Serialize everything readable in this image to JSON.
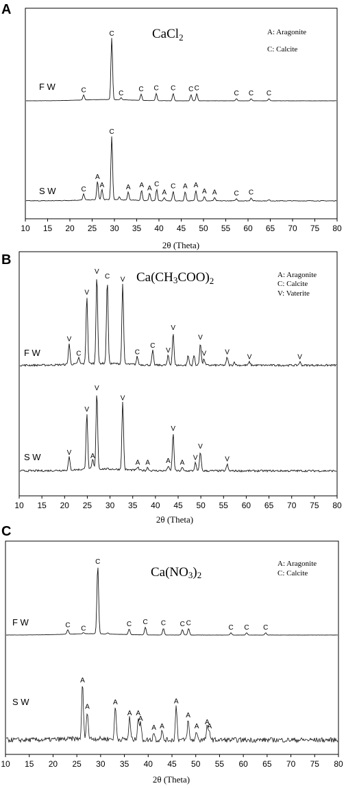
{
  "chart_data": [
    {
      "panel": "A",
      "type": "line",
      "title": "CaCl2",
      "xlabel": "2θ  (Theta)",
      "xlim": [
        10,
        80
      ],
      "xticks": [
        10,
        15,
        20,
        25,
        30,
        35,
        40,
        45,
        50,
        55,
        60,
        65,
        70,
        75,
        80
      ],
      "legend": [
        "A: Aragonite",
        "C: Calcite"
      ],
      "legend_position": "top-right",
      "series": [
        {
          "name": "F W",
          "noise": 0.1,
          "peaks": [
            {
              "x": 23.1,
              "h": 5,
              "label": "C"
            },
            {
              "x": 29.4,
              "h": 60,
              "label": "C"
            },
            {
              "x": 31.5,
              "h": 2,
              "label": "C"
            },
            {
              "x": 36.0,
              "h": 6,
              "label": "C"
            },
            {
              "x": 39.4,
              "h": 7,
              "label": "C"
            },
            {
              "x": 43.2,
              "h": 7,
              "label": "C"
            },
            {
              "x": 47.2,
              "h": 6,
              "label": "C"
            },
            {
              "x": 48.5,
              "h": 7,
              "label": "C"
            },
            {
              "x": 57.4,
              "h": 2,
              "label": "C"
            },
            {
              "x": 60.7,
              "h": 2,
              "label": "C"
            },
            {
              "x": 64.7,
              "h": 2,
              "label": "C"
            }
          ]
        },
        {
          "name": "S W",
          "noise": 0.3,
          "peaks": [
            {
              "x": 23.1,
              "h": 6,
              "label": "C"
            },
            {
              "x": 26.2,
              "h": 18,
              "label": "A"
            },
            {
              "x": 27.2,
              "h": 10,
              "label": "A"
            },
            {
              "x": 29.4,
              "h": 62,
              "label": "C"
            },
            {
              "x": 31.1,
              "h": 3,
              "label": ""
            },
            {
              "x": 33.1,
              "h": 8,
              "label": "A"
            },
            {
              "x": 36.1,
              "h": 10,
              "label": "A"
            },
            {
              "x": 37.9,
              "h": 7,
              "label": "A"
            },
            {
              "x": 39.5,
              "h": 11,
              "label": "C"
            },
            {
              "x": 41.2,
              "h": 3,
              "label": "A"
            },
            {
              "x": 43.2,
              "h": 9,
              "label": "C"
            },
            {
              "x": 45.9,
              "h": 9,
              "label": "A"
            },
            {
              "x": 48.3,
              "h": 10,
              "label": "A"
            },
            {
              "x": 50.2,
              "h": 4,
              "label": "A"
            },
            {
              "x": 52.5,
              "h": 3,
              "label": "A"
            },
            {
              "x": 57.4,
              "h": 2,
              "label": "C"
            },
            {
              "x": 60.7,
              "h": 3,
              "label": "C"
            },
            {
              "x": 64.7,
              "h": 1,
              "label": ""
            }
          ]
        }
      ]
    },
    {
      "panel": "B",
      "type": "line",
      "title": "Ca(CH3COO)2",
      "xlabel": "2θ  (Theta)",
      "xlim": [
        10,
        80
      ],
      "xticks": [
        10,
        15,
        20,
        25,
        30,
        35,
        40,
        45,
        50,
        55,
        60,
        65,
        70,
        75,
        80
      ],
      "legend": [
        "A: Aragonite",
        "C: Calcite",
        "V: Vaterite"
      ],
      "legend_position": "top-right",
      "series": [
        {
          "name": "F W",
          "noise": 0.6,
          "peaks": [
            {
              "x": 21.0,
              "h": 13,
              "label": "V"
            },
            {
              "x": 23.1,
              "h": 4,
              "label": "C"
            },
            {
              "x": 24.9,
              "h": 42,
              "label": "V"
            },
            {
              "x": 27.1,
              "h": 55,
              "label": "V"
            },
            {
              "x": 29.4,
              "h": 52,
              "label": "C"
            },
            {
              "x": 32.8,
              "h": 50,
              "label": "V"
            },
            {
              "x": 36.0,
              "h": 5,
              "label": "C"
            },
            {
              "x": 39.4,
              "h": 9,
              "label": "C"
            },
            {
              "x": 42.8,
              "h": 6,
              "label": "V"
            },
            {
              "x": 43.9,
              "h": 20,
              "label": "V"
            },
            {
              "x": 47.2,
              "h": 6,
              "label": ""
            },
            {
              "x": 48.5,
              "h": 6,
              "label": ""
            },
            {
              "x": 49.9,
              "h": 14,
              "label": "V"
            },
            {
              "x": 50.7,
              "h": 4,
              "label": "V"
            },
            {
              "x": 55.8,
              "h": 5,
              "label": "V"
            },
            {
              "x": 57.4,
              "h": 2,
              "label": ""
            },
            {
              "x": 60.7,
              "h": 2,
              "label": "V"
            },
            {
              "x": 71.8,
              "h": 2,
              "label": "V"
            }
          ]
        },
        {
          "name": "S W",
          "noise": 0.6,
          "peaks": [
            {
              "x": 21.0,
              "h": 8,
              "label": "V"
            },
            {
              "x": 24.9,
              "h": 35,
              "label": "V"
            },
            {
              "x": 26.2,
              "h": 6,
              "label": "A"
            },
            {
              "x": 27.1,
              "h": 48,
              "label": "V"
            },
            {
              "x": 32.8,
              "h": 42,
              "label": "V"
            },
            {
              "x": 36.1,
              "h": 2,
              "label": "A"
            },
            {
              "x": 38.3,
              "h": 2,
              "label": "A"
            },
            {
              "x": 42.8,
              "h": 3,
              "label": "A"
            },
            {
              "x": 43.9,
              "h": 23,
              "label": "V"
            },
            {
              "x": 45.9,
              "h": 2,
              "label": "A"
            },
            {
              "x": 48.8,
              "h": 5,
              "label": "V"
            },
            {
              "x": 49.9,
              "h": 12,
              "label": "V"
            },
            {
              "x": 55.8,
              "h": 4,
              "label": "V"
            }
          ]
        }
      ]
    },
    {
      "panel": "C",
      "type": "line",
      "title": "Ca(NO3)2",
      "xlabel": "2θ  (Theta)",
      "xlim": [
        10,
        80
      ],
      "xticks": [
        10,
        15,
        20,
        25,
        30,
        35,
        40,
        45,
        50,
        55,
        60,
        65,
        70,
        75,
        80
      ],
      "legend": [
        "A: Aragonite",
        "C: Calcite"
      ],
      "legend_position": "top-right",
      "series": [
        {
          "name": "F W",
          "noise": 0.1,
          "peaks": [
            {
              "x": 23.1,
              "h": 4,
              "label": "C"
            },
            {
              "x": 26.4,
              "h": 1,
              "label": "C"
            },
            {
              "x": 29.4,
              "h": 62,
              "label": "C"
            },
            {
              "x": 31.5,
              "h": 1,
              "label": ""
            },
            {
              "x": 36.0,
              "h": 5,
              "label": "C"
            },
            {
              "x": 39.4,
              "h": 7,
              "label": "C"
            },
            {
              "x": 43.2,
              "h": 6,
              "label": "C"
            },
            {
              "x": 47.2,
              "h": 5,
              "label": "C"
            },
            {
              "x": 48.5,
              "h": 6,
              "label": "C"
            },
            {
              "x": 57.4,
              "h": 2,
              "label": "C"
            },
            {
              "x": 60.7,
              "h": 2,
              "label": "C"
            },
            {
              "x": 64.7,
              "h": 2,
              "label": "C"
            }
          ]
        },
        {
          "name": "S W",
          "noise": 2.2,
          "peaks": [
            {
              "x": 26.2,
              "h": 50,
              "label": "A"
            },
            {
              "x": 27.2,
              "h": 26,
              "label": "A"
            },
            {
              "x": 33.1,
              "h": 30,
              "label": "A"
            },
            {
              "x": 36.1,
              "h": 20,
              "label": "A"
            },
            {
              "x": 37.9,
              "h": 20,
              "label": "A"
            },
            {
              "x": 38.4,
              "h": 15,
              "label": "A"
            },
            {
              "x": 41.2,
              "h": 7,
              "label": "A"
            },
            {
              "x": 42.9,
              "h": 8,
              "label": "A"
            },
            {
              "x": 45.9,
              "h": 31,
              "label": "A"
            },
            {
              "x": 48.4,
              "h": 18,
              "label": "A"
            },
            {
              "x": 50.2,
              "h": 8,
              "label": "A"
            },
            {
              "x": 52.4,
              "h": 12,
              "label": "A"
            },
            {
              "x": 52.9,
              "h": 8,
              "label": "A"
            }
          ]
        }
      ]
    }
  ],
  "colors": {
    "trace": "#111111",
    "frame": "#000000",
    "background": "#ffffff"
  }
}
